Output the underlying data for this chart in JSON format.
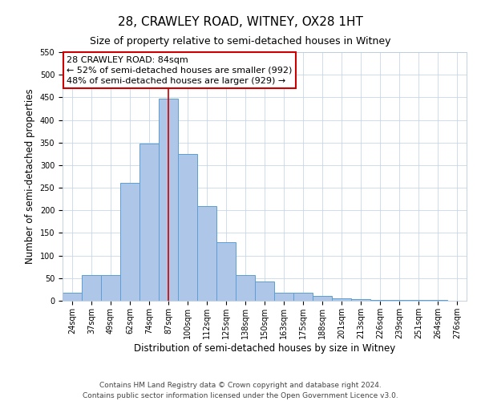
{
  "title": "28, CRAWLEY ROAD, WITNEY, OX28 1HT",
  "subtitle": "Size of property relative to semi-detached houses in Witney",
  "xlabel": "Distribution of semi-detached houses by size in Witney",
  "ylabel": "Number of semi-detached properties",
  "bar_labels": [
    "24sqm",
    "37sqm",
    "49sqm",
    "62sqm",
    "74sqm",
    "87sqm",
    "100sqm",
    "112sqm",
    "125sqm",
    "138sqm",
    "150sqm",
    "163sqm",
    "175sqm",
    "188sqm",
    "201sqm",
    "213sqm",
    "226sqm",
    "239sqm",
    "251sqm",
    "264sqm",
    "276sqm"
  ],
  "bar_values": [
    18,
    57,
    57,
    260,
    347,
    447,
    325,
    210,
    130,
    57,
    42,
    18,
    18,
    10,
    5,
    3,
    2,
    2,
    1,
    1,
    0
  ],
  "bar_color": "#aec6e8",
  "bar_edge_color": "#5a9fd4",
  "ylim": [
    0,
    550
  ],
  "yticks": [
    0,
    50,
    100,
    150,
    200,
    250,
    300,
    350,
    400,
    450,
    500,
    550
  ],
  "vline_x_index": 5,
  "vline_color": "#cc0000",
  "annotation_title": "28 CRAWLEY ROAD: 84sqm",
  "annotation_line1": "← 52% of semi-detached houses are smaller (992)",
  "annotation_line2": "48% of semi-detached houses are larger (929) →",
  "annotation_box_color": "#ffffff",
  "annotation_box_edge": "#cc0000",
  "footer_line1": "Contains HM Land Registry data © Crown copyright and database right 2024.",
  "footer_line2": "Contains public sector information licensed under the Open Government Licence v3.0.",
  "title_fontsize": 11,
  "subtitle_fontsize": 9,
  "axis_label_fontsize": 8.5,
  "tick_fontsize": 7,
  "annotation_fontsize": 8,
  "footer_fontsize": 6.5,
  "background_color": "#ffffff",
  "grid_color": "#c8d8e8"
}
